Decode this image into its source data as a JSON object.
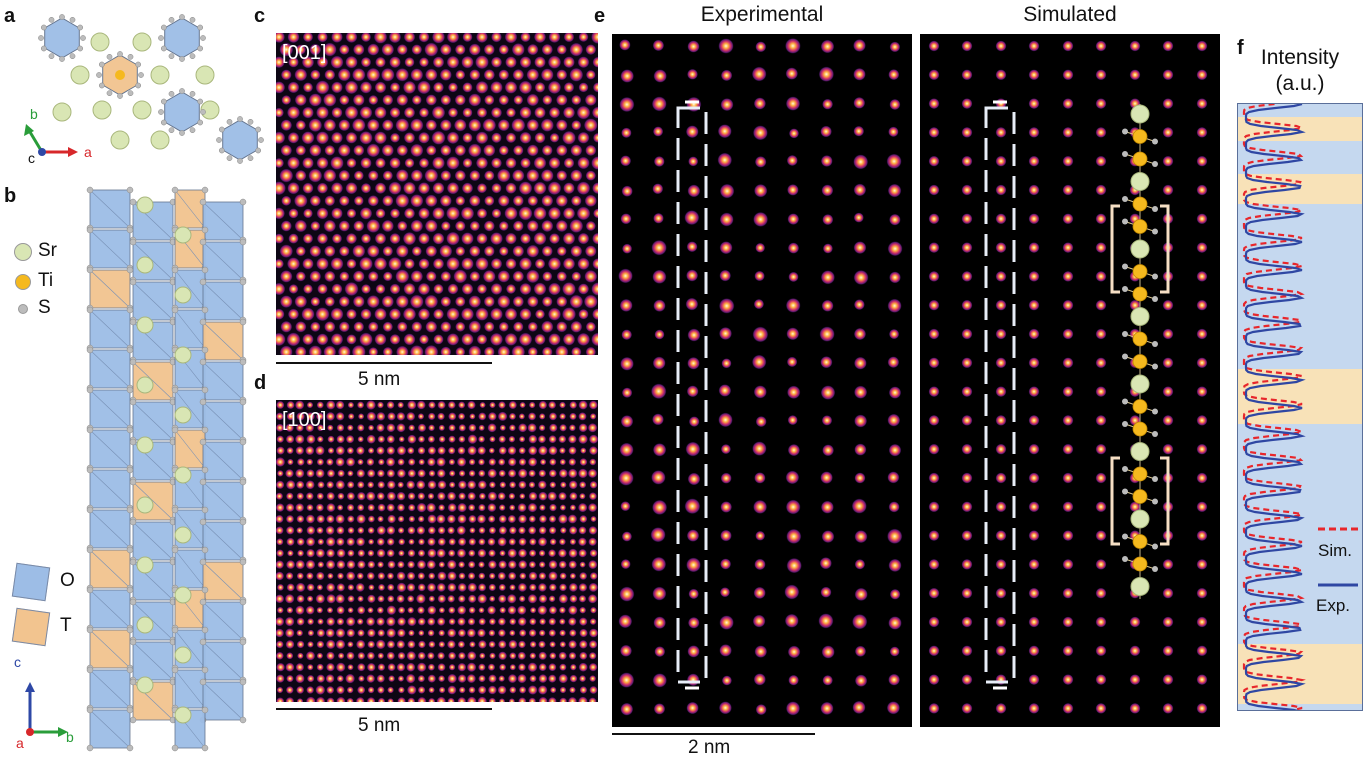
{
  "panel_labels": {
    "a": "a",
    "b": "b",
    "c": "c",
    "d": "d",
    "e": "e",
    "f": "f"
  },
  "axes_a": {
    "b": "b",
    "c": "c",
    "a": "a"
  },
  "axes_b": {
    "c": "c",
    "a": "a",
    "b": "b"
  },
  "legend_atoms": [
    {
      "label": "Sr",
      "color": "#d9e6b4"
    },
    {
      "label": "Ti",
      "color": "#f5b91e"
    },
    {
      "label": "S",
      "color": "#bcbcbc"
    }
  ],
  "legend_polyhedra": [
    {
      "label": "O",
      "color": "#9dbde6"
    },
    {
      "label": "T",
      "color": "#f2c48f"
    }
  ],
  "panel_c": {
    "direction": "[001]",
    "scalebar": "5 nm"
  },
  "panel_d": {
    "direction": "[100]",
    "scalebar": "5 nm"
  },
  "panel_e": {
    "left_title": "Experimental",
    "right_title": "Simulated",
    "scalebar": "2 nm"
  },
  "panel_f": {
    "title_line1": "Intensity",
    "title_line2": "(a.u.)",
    "legend": [
      {
        "label": "Sim.",
        "color": "#e8262b",
        "style": "dashed"
      },
      {
        "label": "Exp.",
        "color": "#2f47a3",
        "style": "solid"
      }
    ],
    "band_colors": {
      "octahedral": "#c5d8ef",
      "tetrahedral": "#f8e2b8"
    }
  }
}
